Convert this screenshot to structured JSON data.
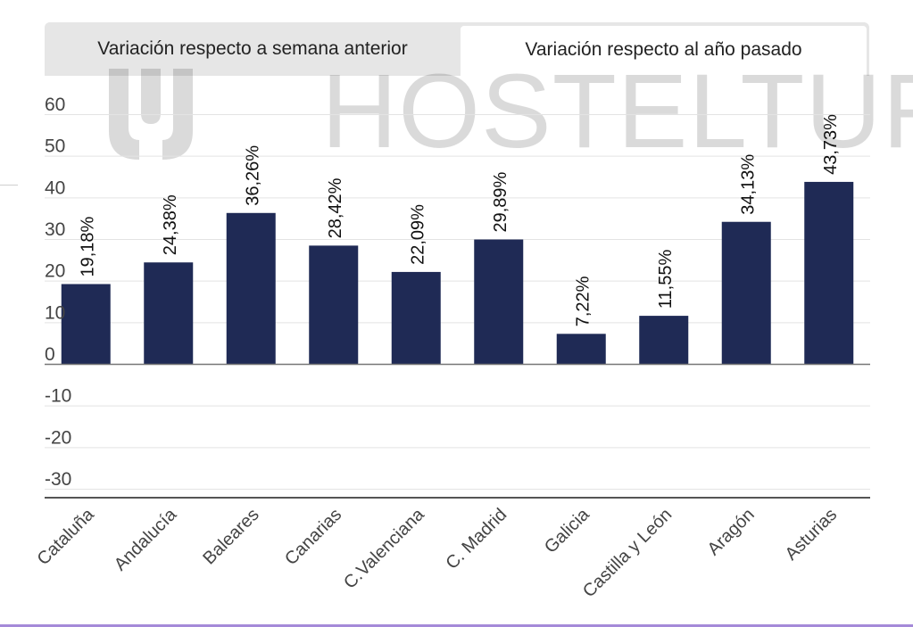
{
  "tabs": [
    {
      "label": "Variación respecto a semana anterior",
      "active": false
    },
    {
      "label": "Variación respecto al año pasado",
      "active": true
    }
  ],
  "watermark": {
    "text": "HOSTELTUR"
  },
  "colors": {
    "bar": "#1f2a55",
    "grid": "#e3e3e3",
    "axis": "#555555",
    "tab_inactive": "#e6e6e6",
    "tab_active": "#ffffff",
    "page_border": "#a58ad9"
  },
  "chart_data": {
    "type": "bar",
    "categories": [
      "Cataluña",
      "Andalucía",
      "Baleares",
      "Canarias",
      "C.Valenciana",
      "C. Madrid",
      "Galicia",
      "Castilla y León",
      "Aragón",
      "Asturias"
    ],
    "values": [
      19.18,
      24.38,
      36.26,
      28.42,
      22.09,
      29.89,
      7.22,
      11.55,
      34.13,
      43.73
    ],
    "data_labels": [
      "19,18%",
      "24,38%",
      "36,26%",
      "28,42%",
      "22,09%",
      "29,89%",
      "7,22%",
      "11,55%",
      "34,13%",
      "43,73%"
    ],
    "y_ticks": [
      60,
      50,
      40,
      30,
      20,
      10,
      0,
      -10,
      -20,
      -30
    ],
    "ylim": [
      -30,
      60
    ],
    "grid": true,
    "legend": "none",
    "title": "",
    "xlabel": "",
    "ylabel": ""
  }
}
